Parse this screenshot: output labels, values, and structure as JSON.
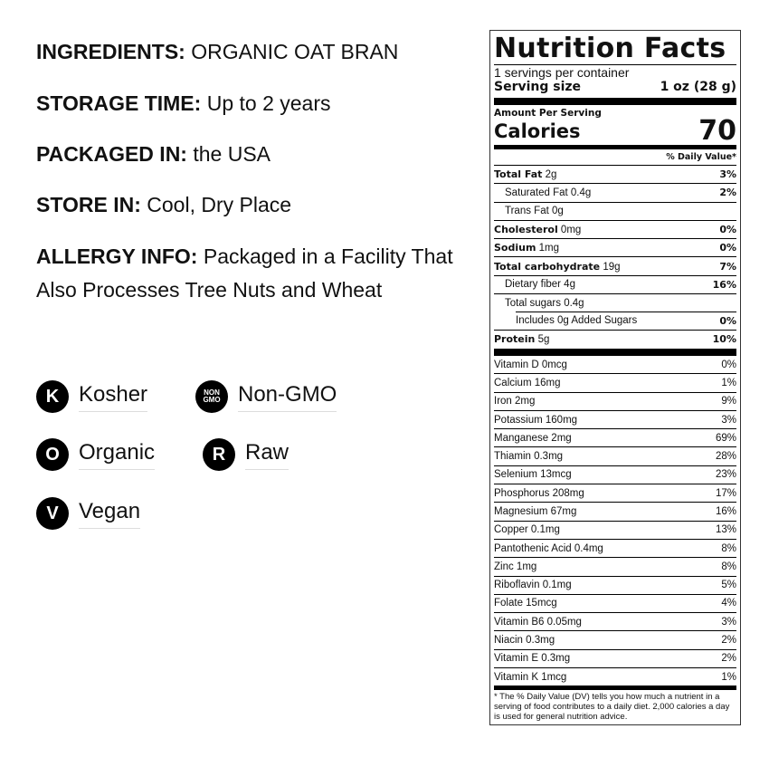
{
  "info": [
    {
      "label": "INGREDIENTS:",
      "value": "ORGANIC OAT BRAN"
    },
    {
      "label": "STORAGE TIME:",
      "value": "Up to 2 years"
    },
    {
      "label": "PACKAGED IN:",
      "value": "the USA"
    },
    {
      "label": "STORE IN:",
      "value": "Cool, Dry Place"
    },
    {
      "label": "ALLERGY INFO:",
      "value": "Packaged in a Facility That Also Processes Tree Nuts and Wheat"
    }
  ],
  "badges": [
    {
      "icon": "K",
      "label": "Kosher",
      "icon_name": "kosher-icon"
    },
    {
      "icon": "NON GMO",
      "label": "Non-GMO",
      "icon_name": "non-gmo-icon"
    },
    {
      "icon": "O",
      "label": "Organic",
      "icon_name": "organic-icon"
    },
    {
      "icon": "R",
      "label": "Raw",
      "icon_name": "raw-icon"
    },
    {
      "icon": "V",
      "label": "Vegan",
      "icon_name": "vegan-icon"
    }
  ],
  "label": {
    "title": "Nutrition Facts",
    "servings": "1 servings per container",
    "serving_size_label": "Serving size",
    "serving_size": "1 oz (28 g)",
    "amount_per": "Amount Per Serving",
    "calories_label": "Calories",
    "calories": "70",
    "dv_header": "% Daily Value*",
    "nutrients": [
      {
        "name": "Total Fat",
        "amount": "2g",
        "dv": "3%",
        "bold": true,
        "indent": 0
      },
      {
        "name": "Saturated Fat 0.4g",
        "amount": "",
        "dv": "2%",
        "bold": false,
        "indent": 1
      },
      {
        "name": "Trans Fat 0g",
        "amount": "",
        "dv": "",
        "bold": false,
        "indent": 1
      },
      {
        "name": "Cholesterol",
        "amount": "0mg",
        "dv": "0%",
        "bold": true,
        "indent": 0
      },
      {
        "name": "Sodium",
        "amount": "1mg",
        "dv": "0%",
        "bold": true,
        "indent": 0
      },
      {
        "name": "Total carbohydrate",
        "amount": "19g",
        "dv": "7%",
        "bold": true,
        "indent": 0
      },
      {
        "name": "Dietary fiber 4g",
        "amount": "",
        "dv": "16%",
        "bold": false,
        "indent": 1
      },
      {
        "name": "Total sugars 0.4g",
        "amount": "",
        "dv": "",
        "bold": false,
        "indent": 1
      },
      {
        "name": "Includes 0g Added Sugars",
        "amount": "",
        "dv": "0%",
        "bold": false,
        "indent": 2
      },
      {
        "name": "Protein",
        "amount": "5g",
        "dv": "10%",
        "bold": true,
        "indent": 0
      }
    ],
    "vitamins": [
      {
        "name": "Vitamin D 0mcg",
        "dv": "0%"
      },
      {
        "name": "Calcium 16mg",
        "dv": "1%"
      },
      {
        "name": "Iron 2mg",
        "dv": "9%"
      },
      {
        "name": "Potassium 160mg",
        "dv": "3%"
      },
      {
        "name": "Manganese 2mg",
        "dv": "69%"
      },
      {
        "name": "Thiamin 0.3mg",
        "dv": "28%"
      },
      {
        "name": "Selenium 13mcg",
        "dv": "23%"
      },
      {
        "name": "Phosphorus 208mg",
        "dv": "17%"
      },
      {
        "name": "Magnesium 67mg",
        "dv": "16%"
      },
      {
        "name": "Copper 0.1mg",
        "dv": "13%"
      },
      {
        "name": "Pantothenic Acid 0.4mg",
        "dv": "8%"
      },
      {
        "name": "Zinc 1mg",
        "dv": "8%"
      },
      {
        "name": "Riboflavin 0.1mg",
        "dv": "5%"
      },
      {
        "name": "Folate 15mcg",
        "dv": "4%"
      },
      {
        "name": "Vitamin B6 0.05mg",
        "dv": "3%"
      },
      {
        "name": "Niacin 0.3mg",
        "dv": "2%"
      },
      {
        "name": "Vitamin E 0.3mg",
        "dv": "2%"
      },
      {
        "name": "Vitamin K 1mcg",
        "dv": "1%"
      }
    ],
    "footnote": "* The % Daily Value (DV) tells you how much a nutrient in a serving of food contributes to a daily diet. 2,000 calories a day is used for general nutrition advice."
  }
}
